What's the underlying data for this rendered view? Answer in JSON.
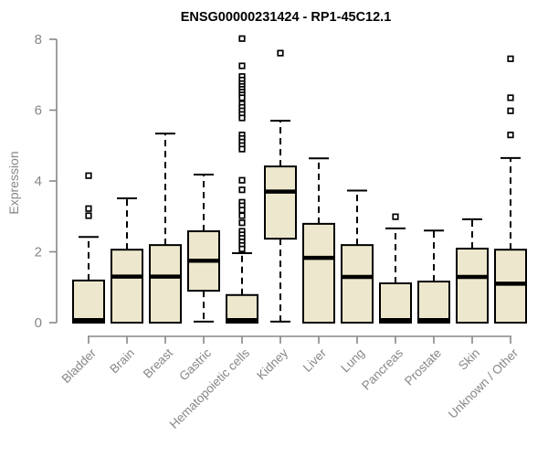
{
  "title": "ENSG00000231424 - RP1-45C12.1",
  "chart_data": {
    "type": "boxplot",
    "title": "ENSG00000231424 - RP1-45C12.1",
    "xlabel": "",
    "ylabel": "Expression",
    "ylim": [
      0,
      8
    ],
    "yticks": [
      0,
      2,
      4,
      6,
      8
    ],
    "grid": "off",
    "x_label_rotation_deg": 45,
    "categories": [
      "Bladder",
      "Brain",
      "Breast",
      "Gastric",
      "Hematopoietic cells",
      "Kidney",
      "Liver",
      "Lung",
      "Pancreas",
      "Prostate",
      "Skin",
      "Unknown / Other"
    ],
    "series": [
      {
        "name": "Bladder",
        "q1": 0,
        "median": 0.07,
        "q3": 1.19,
        "whisker_low": 0,
        "whisker_high": 2.42,
        "outliers": [
          4.15,
          3.22,
          3.02
        ]
      },
      {
        "name": "Brain",
        "q1": 0,
        "median": 1.3,
        "q3": 2.06,
        "whisker_low": 0,
        "whisker_high": 3.51,
        "outliers": []
      },
      {
        "name": "Breast",
        "q1": 0,
        "median": 1.3,
        "q3": 2.19,
        "whisker_low": 0,
        "whisker_high": 5.34,
        "outliers": []
      },
      {
        "name": "Gastric",
        "q1": 0.9,
        "median": 1.75,
        "q3": 2.58,
        "whisker_low": 0.03,
        "whisker_high": 4.18,
        "outliers": []
      },
      {
        "name": "Hematopoietic cells",
        "q1": 0,
        "median": 0.07,
        "q3": 0.78,
        "whisker_low": 0,
        "whisker_high": 1.96,
        "outliers": [
          8.02,
          7.25,
          6.95,
          6.85,
          6.75,
          6.67,
          6.59,
          6.51,
          6.43,
          6.35,
          6.18,
          6.08,
          5.98,
          5.88,
          5.78,
          5.3,
          5.2,
          5.1,
          5.0,
          4.9,
          4.02,
          3.75,
          3.4,
          3.3,
          3.18,
          3.02,
          2.82,
          2.58,
          2.48,
          2.38,
          2.28,
          2.18,
          2.08
        ]
      },
      {
        "name": "Kidney",
        "q1": 2.37,
        "median": 3.7,
        "q3": 4.41,
        "whisker_low": 0.03,
        "whisker_high": 5.7,
        "outliers": [
          7.61
        ]
      },
      {
        "name": "Liver",
        "q1": 0,
        "median": 1.83,
        "q3": 2.79,
        "whisker_low": 0,
        "whisker_high": 4.64,
        "outliers": []
      },
      {
        "name": "Lung",
        "q1": 0,
        "median": 1.29,
        "q3": 2.19,
        "whisker_low": 0,
        "whisker_high": 3.73,
        "outliers": []
      },
      {
        "name": "Pancreas",
        "q1": 0,
        "median": 0.07,
        "q3": 1.11,
        "whisker_low": 0,
        "whisker_high": 2.66,
        "outliers": [
          2.99
        ]
      },
      {
        "name": "Prostate",
        "q1": 0,
        "median": 0.07,
        "q3": 1.16,
        "whisker_low": 0,
        "whisker_high": 2.6,
        "outliers": []
      },
      {
        "name": "Skin",
        "q1": 0,
        "median": 1.29,
        "q3": 2.09,
        "whisker_low": 0,
        "whisker_high": 2.92,
        "outliers": []
      },
      {
        "name": "Unknown / Other",
        "q1": 0,
        "median": 1.1,
        "q3": 2.06,
        "whisker_low": 0,
        "whisker_high": 4.65,
        "outliers": [
          7.45,
          6.35,
          5.98,
          5.3
        ]
      }
    ],
    "colors": {
      "box_fill": "#EDE8CD",
      "box_stroke": "#000000",
      "median": "#000000",
      "whisker": "#000000",
      "outlier_stroke": "#000000",
      "outlier_fill": "#ffffff",
      "axis": "#878787",
      "tick_label": "#878787",
      "title": "#000000",
      "background": "#ffffff"
    }
  }
}
